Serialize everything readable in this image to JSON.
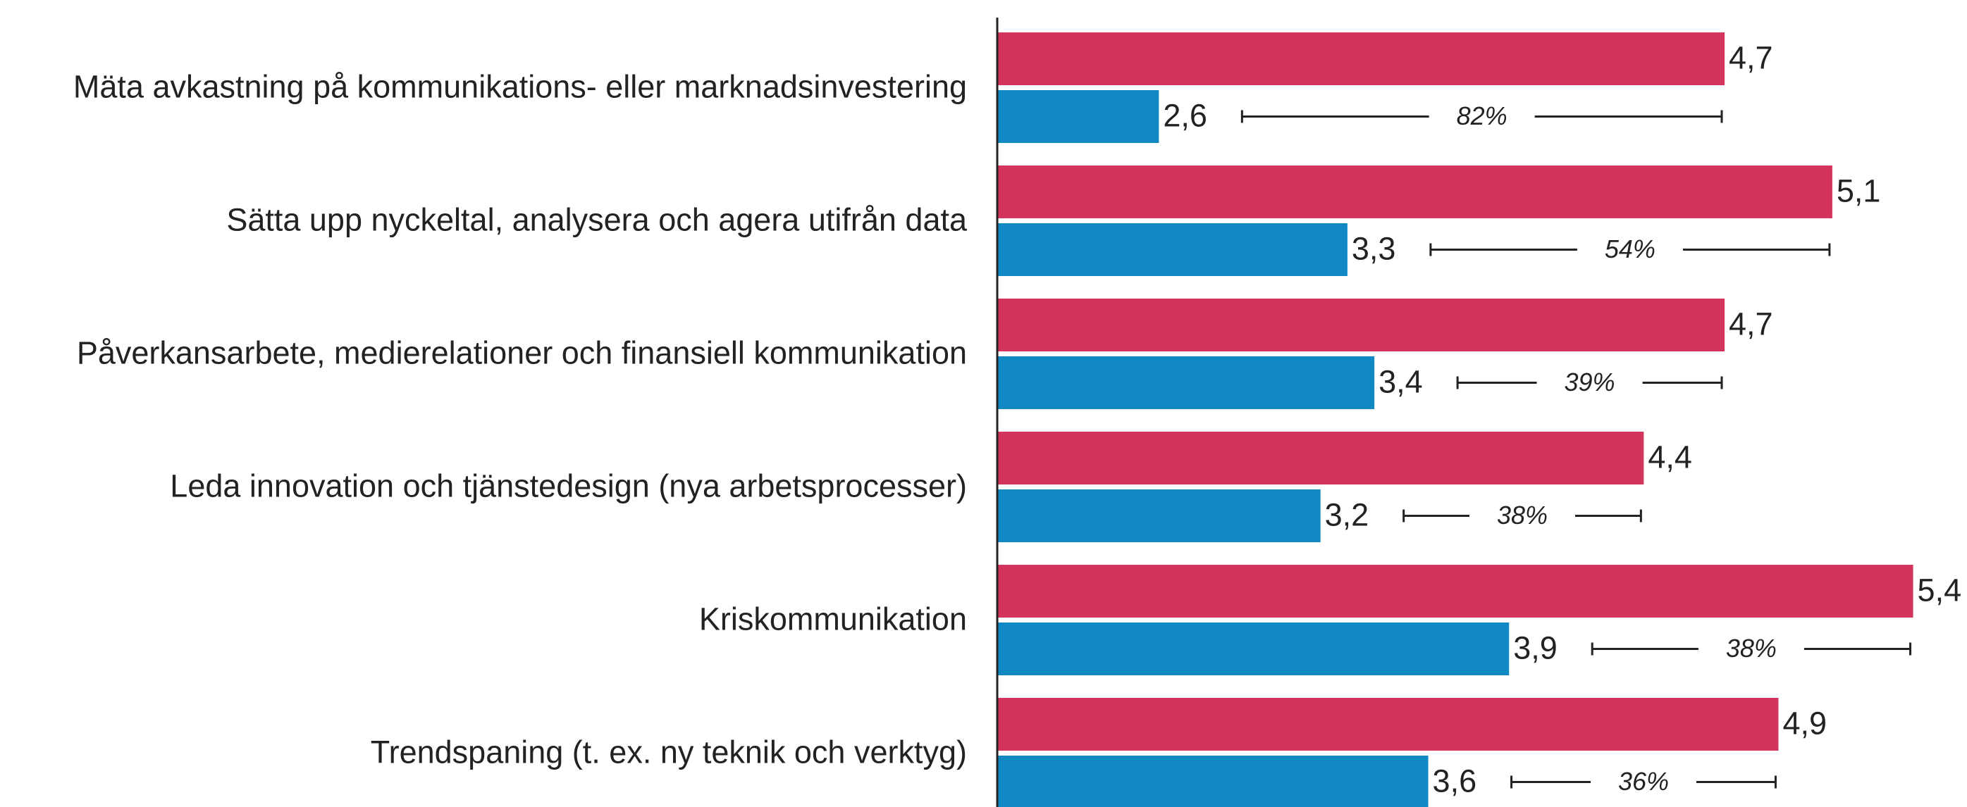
{
  "chart_data": {
    "type": "bar",
    "orientation": "horizontal",
    "categories": [
      "Mäta avkastning på kommunikations- eller marknadsinvestering",
      "Sätta upp nyckeltal, analysera och agera utifrån data",
      "Påverkansarbete, medierelationer och finansiell kommunikation",
      "Leda innovation och tjänstedesign (nya arbetsprocesser)",
      "Kriskommunikation",
      "Trendspaning (t. ex. ny teknik och verktyg)"
    ],
    "series": [
      {
        "color": "#d3345c",
        "values": [
          4.7,
          5.1,
          4.7,
          4.4,
          5.4,
          4.9
        ],
        "value_labels": [
          "4,7",
          "5,1",
          "4,7",
          "4,4",
          "5,4",
          "4,9"
        ]
      },
      {
        "color": "#1088c4",
        "values": [
          2.6,
          3.3,
          3.4,
          3.2,
          3.9,
          3.6
        ],
        "value_labels": [
          "2,6",
          "3,3",
          "3,4",
          "3,2",
          "3,9",
          "3,6"
        ]
      }
    ],
    "annotations": [
      "82%",
      "54%",
      "39%",
      "38%",
      "38%",
      "36%"
    ],
    "xlim": [
      2,
      5.6
    ]
  }
}
